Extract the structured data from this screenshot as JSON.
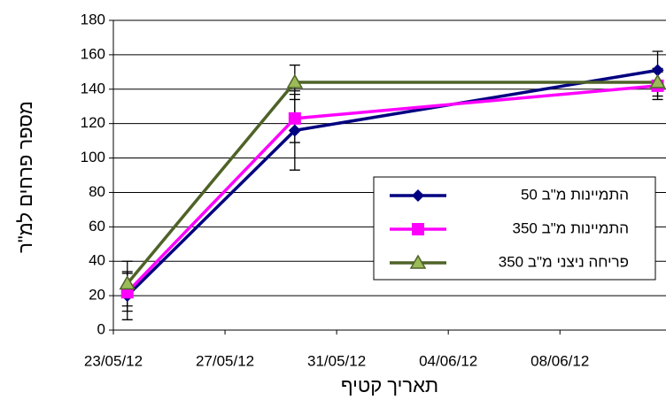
{
  "chart_data": {
    "type": "line",
    "y_label": "מספר פרחים למ\"ר",
    "x_label": "תאריך קטיף",
    "x": [
      0.5,
      6.5,
      19.5
    ],
    "xlim": [
      0,
      19.8
    ],
    "xticks": [
      {
        "value": 0,
        "label": "23/05/12"
      },
      {
        "value": 4,
        "label": "27/05/12"
      },
      {
        "value": 8,
        "label": "31/05/12"
      },
      {
        "value": 12,
        "label": "04/06/12"
      },
      {
        "value": 16,
        "label": "08/06/12"
      }
    ],
    "ylim": [
      0,
      180
    ],
    "yticks": [
      0,
      20,
      40,
      60,
      80,
      100,
      120,
      140,
      160,
      180
    ],
    "grid": true,
    "legend": "right",
    "series": [
      {
        "name": "התמיינות מ\"ב 50",
        "color": "#000080",
        "marker": "diamond",
        "values": [
          20,
          116,
          151
        ],
        "errors": [
          14,
          23,
          11
        ]
      },
      {
        "name": "התמיינות מ\"ב 350",
        "color": "#ff00ff",
        "marker": "square",
        "values": [
          22,
          123,
          142
        ],
        "errors": [
          11,
          14,
          8
        ]
      },
      {
        "name": "פריחה ניצני מ\"ב 350",
        "color": "#4f6228",
        "marker": "triangle",
        "values": [
          27,
          144,
          144
        ],
        "errors": [
          13,
          10,
          8
        ]
      }
    ]
  }
}
